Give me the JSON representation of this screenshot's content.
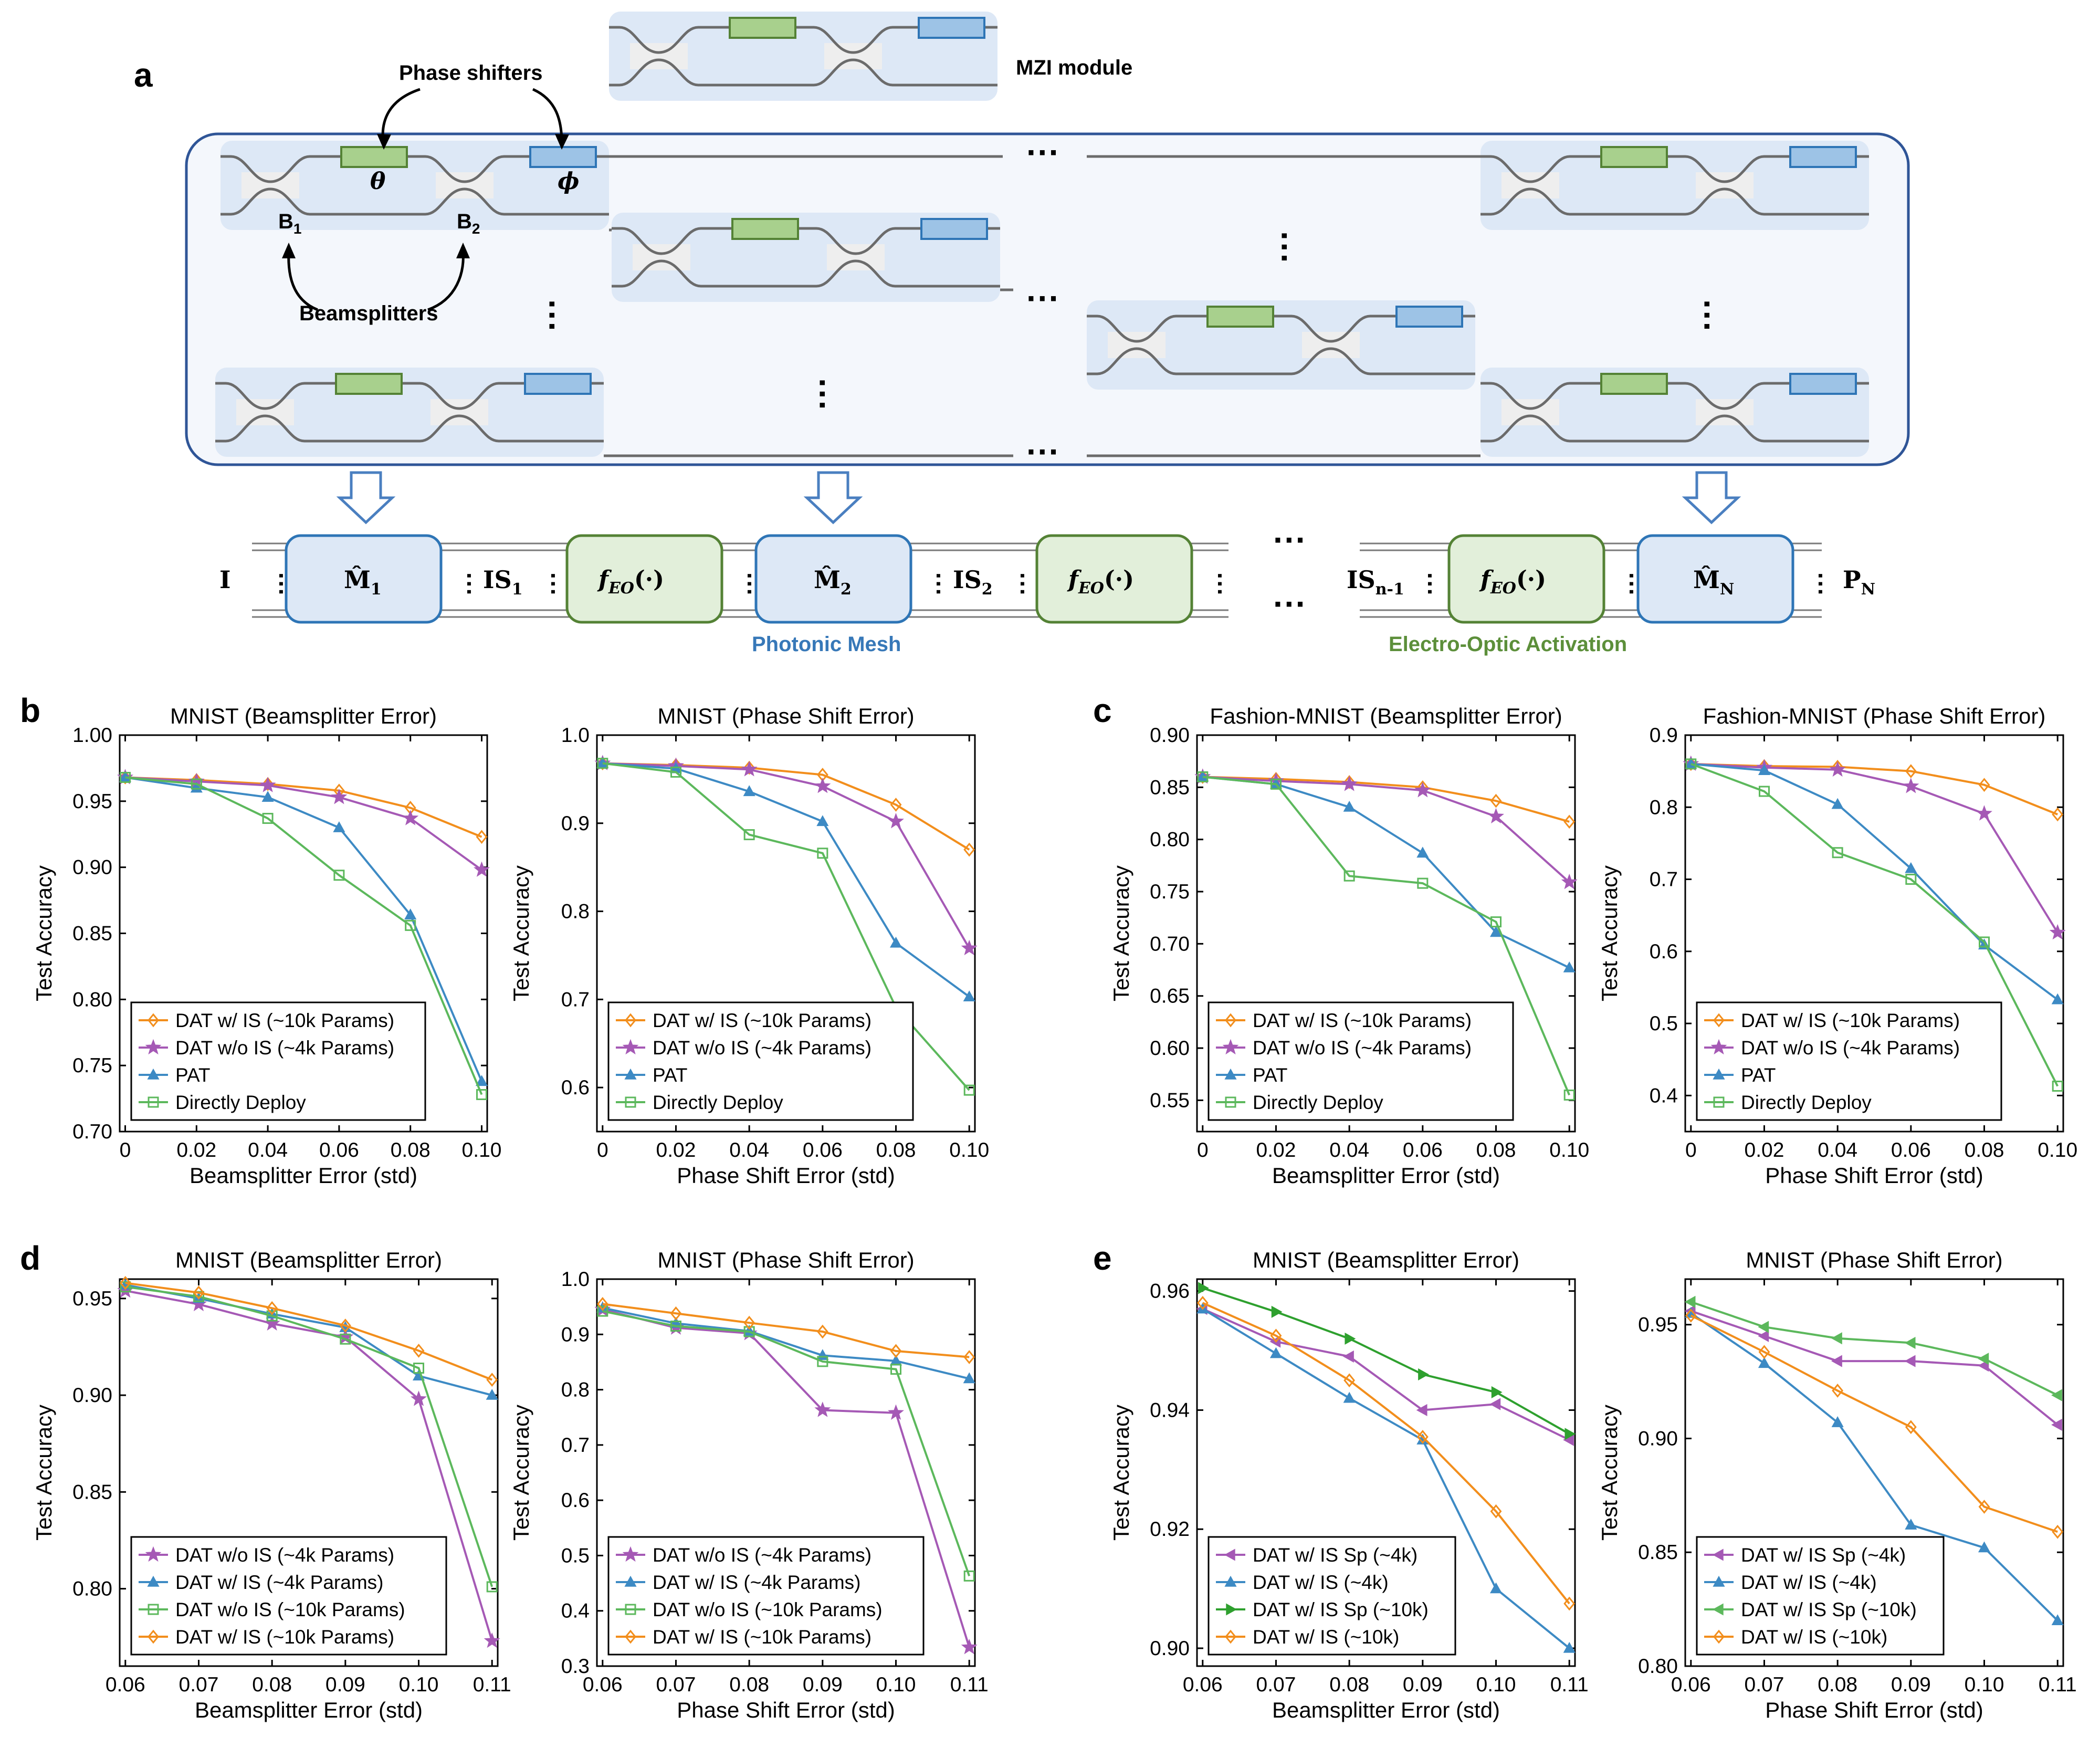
{
  "panel_a": {
    "letter": "a",
    "mzi_module_label": "MZI module",
    "phase_shifters_label": "Phase shifters",
    "beamsplitters_label": "Beamsplitters",
    "theta": "θ",
    "phi": "ϕ",
    "b1": "B",
    "b1_sub": "1",
    "b2": "B",
    "b2_sub": "2",
    "input_label": "I",
    "output_label": "P",
    "output_sub": "N",
    "mesh_blocks": [
      {
        "label": "M̂",
        "sub": "1"
      },
      {
        "label": "M̂",
        "sub": "2"
      },
      {
        "label": "M̂",
        "sub": "N"
      }
    ],
    "is_labels": [
      {
        "label": "IS",
        "sub": "1"
      },
      {
        "label": "IS",
        "sub": "2"
      },
      {
        "label": "IS",
        "sub": "n-1"
      }
    ],
    "activation_label": "f",
    "activation_sub": "EO",
    "activation_args": "(·)",
    "photonic_mesh_caption": "Photonic Mesh",
    "eo_activation_caption": "Electro-Optic Activation",
    "colors": {
      "phase_green": "#a8d08d",
      "phase_blue": "#9dc3e6",
      "mesh_fill": "#dde8f6",
      "eo_fill": "#e2efda",
      "frame": "#2f5597"
    }
  },
  "panel_letters": {
    "b": "b",
    "c": "c",
    "d": "d",
    "e": "e"
  },
  "chart_data": [
    {
      "id": "b1",
      "type": "line",
      "title": "MNIST (Beamsplitter Error)",
      "xlabel": "Beamsplitter Error (std)",
      "ylabel": "Test Accuracy",
      "x": [
        0,
        0.02,
        0.04,
        0.06,
        0.08,
        0.1
      ],
      "xticks": [
        "0",
        "0.02",
        "0.04",
        "0.06",
        "0.08",
        "0.10"
      ],
      "xlim": [
        0,
        0.1
      ],
      "ylim": [
        0.7,
        1.0
      ],
      "yticks": [
        0.7,
        0.75,
        0.8,
        0.85,
        0.9,
        0.95,
        1.0
      ],
      "yticklabels": [
        "0.70",
        "0.75",
        "0.80",
        "0.85",
        "0.90",
        "0.95",
        "1.00"
      ],
      "legend_pos": "bottom-left",
      "series": [
        {
          "name": "DAT w/ IS (~10k Params)",
          "color": "#f28e1c",
          "marker": "diamond",
          "values": [
            0.968,
            0.966,
            0.963,
            0.958,
            0.945,
            0.923
          ]
        },
        {
          "name": "DAT w/o IS (~4k Params)",
          "color": "#a559b5",
          "marker": "star",
          "values": [
            0.968,
            0.965,
            0.962,
            0.953,
            0.937,
            0.898
          ]
        },
        {
          "name": "PAT",
          "color": "#3d8ac4",
          "marker": "triangle",
          "values": [
            0.968,
            0.96,
            0.953,
            0.93,
            0.864,
            0.738
          ]
        },
        {
          "name": "Directly Deploy",
          "color": "#5cb85c",
          "marker": "square",
          "values": [
            0.968,
            0.963,
            0.937,
            0.894,
            0.856,
            0.728
          ]
        }
      ]
    },
    {
      "id": "b2",
      "type": "line",
      "title": "MNIST (Phase Shift Error)",
      "xlabel": "Phase Shift Error (std)",
      "ylabel": "Test Accuracy",
      "x": [
        0,
        0.02,
        0.04,
        0.06,
        0.08,
        0.1
      ],
      "xticks": [
        "0",
        "0.02",
        "0.04",
        "0.06",
        "0.08",
        "0.10"
      ],
      "xlim": [
        0,
        0.1
      ],
      "ylim": [
        0.55,
        1.0
      ],
      "yticks": [
        0.6,
        0.7,
        0.8,
        0.9,
        1.0
      ],
      "yticklabels": [
        "0.6",
        "0.7",
        "0.8",
        "0.9",
        "1.0"
      ],
      "legend_pos": "bottom-left",
      "series": [
        {
          "name": "DAT w/ IS (~10k Params)",
          "color": "#f28e1c",
          "marker": "diamond",
          "values": [
            0.968,
            0.966,
            0.963,
            0.955,
            0.921,
            0.87
          ]
        },
        {
          "name": "DAT w/o IS (~4k Params)",
          "color": "#a559b5",
          "marker": "star",
          "values": [
            0.968,
            0.965,
            0.961,
            0.942,
            0.902,
            0.758
          ]
        },
        {
          "name": "PAT",
          "color": "#3d8ac4",
          "marker": "triangle",
          "values": [
            0.968,
            0.962,
            0.936,
            0.902,
            0.764,
            0.703
          ]
        },
        {
          "name": "Directly Deploy",
          "color": "#5cb85c",
          "marker": "square",
          "values": [
            0.968,
            0.958,
            0.887,
            0.866,
            0.691,
            0.597
          ]
        }
      ]
    },
    {
      "id": "c1",
      "type": "line",
      "title": "Fashion-MNIST (Beamsplitter Error)",
      "xlabel": "Beamsplitter Error (std)",
      "ylabel": "Test Accuracy",
      "x": [
        0,
        0.02,
        0.04,
        0.06,
        0.08,
        0.1
      ],
      "xticks": [
        "0",
        "0.02",
        "0.04",
        "0.06",
        "0.08",
        "0.10"
      ],
      "xlim": [
        0,
        0.1
      ],
      "ylim": [
        0.52,
        0.9
      ],
      "yticks": [
        0.55,
        0.6,
        0.65,
        0.7,
        0.75,
        0.8,
        0.85,
        0.9
      ],
      "yticklabels": [
        "0.55",
        "0.60",
        "0.65",
        "0.70",
        "0.75",
        "0.80",
        "0.85",
        "0.90"
      ],
      "legend_pos": "bottom-left",
      "series": [
        {
          "name": "DAT w/ IS (~10k Params)",
          "color": "#f28e1c",
          "marker": "diamond",
          "values": [
            0.86,
            0.858,
            0.855,
            0.85,
            0.837,
            0.817
          ]
        },
        {
          "name": "DAT w/o IS (~4k Params)",
          "color": "#a559b5",
          "marker": "star",
          "values": [
            0.86,
            0.856,
            0.853,
            0.847,
            0.822,
            0.759
          ]
        },
        {
          "name": "PAT",
          "color": "#3d8ac4",
          "marker": "triangle",
          "values": [
            0.86,
            0.853,
            0.831,
            0.787,
            0.711,
            0.677
          ]
        },
        {
          "name": "Directly Deploy",
          "color": "#5cb85c",
          "marker": "square",
          "values": [
            0.86,
            0.853,
            0.765,
            0.758,
            0.721,
            0.555
          ]
        }
      ]
    },
    {
      "id": "c2",
      "type": "line",
      "title": "Fashion-MNIST (Phase Shift Error)",
      "xlabel": "Phase Shift Error (std)",
      "ylabel": "Test Accuracy",
      "x": [
        0,
        0.02,
        0.04,
        0.06,
        0.08,
        0.1
      ],
      "xticks": [
        "0",
        "0.02",
        "0.04",
        "0.06",
        "0.08",
        "0.10"
      ],
      "xlim": [
        0,
        0.1
      ],
      "ylim": [
        0.35,
        0.9
      ],
      "yticks": [
        0.4,
        0.5,
        0.6,
        0.7,
        0.8,
        0.9
      ],
      "yticklabels": [
        "0.4",
        "0.5",
        "0.6",
        "0.7",
        "0.8",
        "0.9"
      ],
      "legend_pos": "bottom-left",
      "series": [
        {
          "name": "DAT w/ IS (~10k Params)",
          "color": "#f28e1c",
          "marker": "diamond",
          "values": [
            0.86,
            0.857,
            0.856,
            0.85,
            0.831,
            0.79
          ]
        },
        {
          "name": "DAT w/o IS (~4k Params)",
          "color": "#a559b5",
          "marker": "star",
          "values": [
            0.86,
            0.855,
            0.852,
            0.829,
            0.791,
            0.626
          ]
        },
        {
          "name": "PAT",
          "color": "#3d8ac4",
          "marker": "triangle",
          "values": [
            0.86,
            0.851,
            0.804,
            0.715,
            0.609,
            0.533
          ]
        },
        {
          "name": "Directly Deploy",
          "color": "#5cb85c",
          "marker": "square",
          "values": [
            0.86,
            0.822,
            0.737,
            0.7,
            0.613,
            0.413
          ]
        }
      ]
    },
    {
      "id": "d1",
      "type": "line",
      "title": "MNIST (Beamsplitter Error)",
      "xlabel": "Beamsplitter Error (std)",
      "ylabel": "Test Accuracy",
      "x": [
        0.06,
        0.07,
        0.08,
        0.09,
        0.1,
        0.11
      ],
      "xticks": [
        "0.06",
        "0.07",
        "0.08",
        "0.09",
        "0.10",
        "0.11"
      ],
      "xlim": [
        0.06,
        0.11
      ],
      "ylim": [
        0.76,
        0.96
      ],
      "yticks": [
        0.8,
        0.85,
        0.9,
        0.95
      ],
      "yticklabels": [
        "0.80",
        "0.85",
        "0.90",
        "0.95"
      ],
      "legend_pos": "bottom-left",
      "series": [
        {
          "name": "DAT w/o IS (~4k Params)",
          "color": "#a559b5",
          "marker": "star",
          "values": [
            0.954,
            0.947,
            0.937,
            0.93,
            0.898,
            0.773
          ]
        },
        {
          "name": "DAT w/ IS (~4k Params)",
          "color": "#3d8ac4",
          "marker": "triangle",
          "values": [
            0.957,
            0.95,
            0.942,
            0.935,
            0.91,
            0.9
          ]
        },
        {
          "name": "DAT w/o IS (~10k Params)",
          "color": "#5cb85c",
          "marker": "square",
          "values": [
            0.956,
            0.951,
            0.941,
            0.929,
            0.914,
            0.801
          ]
        },
        {
          "name": "DAT w/ IS (~10k Params)",
          "color": "#f28e1c",
          "marker": "diamond",
          "values": [
            0.958,
            0.953,
            0.945,
            0.936,
            0.923,
            0.908
          ]
        }
      ]
    },
    {
      "id": "d2",
      "type": "line",
      "title": "MNIST (Phase Shift Error)",
      "xlabel": "Phase Shift Error (std)",
      "ylabel": "Test Accuracy",
      "x": [
        0.06,
        0.07,
        0.08,
        0.09,
        0.1,
        0.11
      ],
      "xticks": [
        "0.06",
        "0.07",
        "0.08",
        "0.09",
        "0.10",
        "0.11"
      ],
      "xlim": [
        0.06,
        0.11
      ],
      "ylim": [
        0.3,
        1.0
      ],
      "yticks": [
        0.3,
        0.4,
        0.5,
        0.6,
        0.7,
        0.8,
        0.9,
        1.0
      ],
      "yticklabels": [
        "0.3",
        "0.4",
        "0.5",
        "0.6",
        "0.7",
        "0.8",
        "0.9",
        "1.0"
      ],
      "legend_pos": "bottom-left",
      "series": [
        {
          "name": "DAT w/o IS (~4k Params)",
          "color": "#a559b5",
          "marker": "star",
          "values": [
            0.945,
            0.912,
            0.902,
            0.763,
            0.758,
            0.334
          ]
        },
        {
          "name": "DAT w/ IS (~4k Params)",
          "color": "#3d8ac4",
          "marker": "triangle",
          "values": [
            0.948,
            0.92,
            0.906,
            0.862,
            0.852,
            0.82
          ]
        },
        {
          "name": "DAT w/o IS (~10k Params)",
          "color": "#5cb85c",
          "marker": "square",
          "values": [
            0.942,
            0.915,
            0.905,
            0.851,
            0.837,
            0.463
          ]
        },
        {
          "name": "DAT w/ IS (~10k Params)",
          "color": "#f28e1c",
          "marker": "diamond",
          "values": [
            0.955,
            0.938,
            0.921,
            0.905,
            0.87,
            0.859
          ]
        }
      ]
    },
    {
      "id": "e1",
      "type": "line",
      "title": "MNIST (Beamsplitter Error)",
      "xlabel": "Beamsplitter Error (std)",
      "ylabel": "Test Accuracy",
      "x": [
        0.06,
        0.07,
        0.08,
        0.09,
        0.1,
        0.11
      ],
      "xticks": [
        "0.06",
        "0.07",
        "0.08",
        "0.09",
        "0.10",
        "0.11"
      ],
      "xlim": [
        0.06,
        0.11
      ],
      "ylim": [
        0.897,
        0.962
      ],
      "yticks": [
        0.9,
        0.92,
        0.94,
        0.96
      ],
      "yticklabels": [
        "0.90",
        "0.92",
        "0.94",
        "0.96"
      ],
      "legend_pos": "bottom-left",
      "series": [
        {
          "name": "DAT w/ IS Sp (~4k)",
          "color": "#a559b5",
          "marker": "tri-left",
          "values": [
            0.957,
            0.9515,
            0.949,
            0.94,
            0.941,
            0.935
          ]
        },
        {
          "name": "DAT w/ IS (~4k)",
          "color": "#3d8ac4",
          "marker": "triangle",
          "values": [
            0.957,
            0.9495,
            0.942,
            0.935,
            0.91,
            0.9
          ]
        },
        {
          "name": "DAT w/ IS Sp (~10k)",
          "color": "#2ea02e",
          "marker": "tri-right",
          "values": [
            0.9605,
            0.9565,
            0.952,
            0.946,
            0.943,
            0.936
          ]
        },
        {
          "name": "DAT w/ IS (~10k)",
          "color": "#f28e1c",
          "marker": "diamond",
          "values": [
            0.958,
            0.9525,
            0.945,
            0.9355,
            0.923,
            0.9075
          ]
        }
      ]
    },
    {
      "id": "e2",
      "type": "line",
      "title": "MNIST (Phase Shift Error)",
      "xlabel": "Phase Shift Error (std)",
      "ylabel": "Test Accuracy",
      "x": [
        0.06,
        0.07,
        0.08,
        0.09,
        0.1,
        0.11
      ],
      "xticks": [
        "0.06",
        "0.07",
        "0.08",
        "0.09",
        "0.10",
        "0.11"
      ],
      "xlim": [
        0.06,
        0.11
      ],
      "ylim": [
        0.8,
        0.97
      ],
      "yticks": [
        0.8,
        0.85,
        0.9,
        0.95
      ],
      "yticklabels": [
        "0.80",
        "0.85",
        "0.90",
        "0.95"
      ],
      "legend_pos": "bottom-left",
      "series": [
        {
          "name": "DAT w/ IS Sp (~4k)",
          "color": "#a559b5",
          "marker": "tri-left",
          "values": [
            0.956,
            0.945,
            0.934,
            0.934,
            0.932,
            0.906
          ]
        },
        {
          "name": "DAT w/ IS (~4k)",
          "color": "#3d8ac4",
          "marker": "triangle",
          "values": [
            0.955,
            0.933,
            0.907,
            0.862,
            0.852,
            0.82
          ]
        },
        {
          "name": "DAT w/ IS Sp (~10k)",
          "color": "#5cb85c",
          "marker": "tri-left",
          "values": [
            0.96,
            0.949,
            0.944,
            0.942,
            0.935,
            0.919
          ]
        },
        {
          "name": "DAT w/ IS (~10k)",
          "color": "#f28e1c",
          "marker": "diamond",
          "values": [
            0.954,
            0.938,
            0.921,
            0.905,
            0.87,
            0.859
          ]
        }
      ]
    }
  ]
}
